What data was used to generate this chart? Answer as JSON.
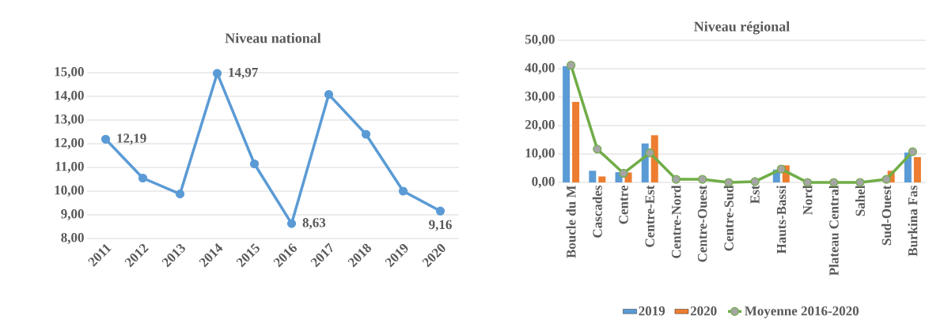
{
  "chart_data": [
    {
      "type": "line",
      "title": "Niveau national",
      "categories": [
        "2011",
        "2012",
        "2013",
        "2014",
        "2015",
        "2016",
        "2017",
        "2018",
        "2019",
        "2020"
      ],
      "series": [
        {
          "color": "#5b9bd5",
          "values": [
            12.19,
            10.55,
            9.88,
            14.97,
            11.15,
            8.63,
            14.08,
            12.4,
            10.0,
            9.16
          ],
          "value_labels": [
            "12,19",
            null,
            null,
            "14,97",
            null,
            "8,63",
            null,
            null,
            null,
            "9,16"
          ]
        }
      ],
      "ylim": [
        8,
        15
      ],
      "yticks": [
        {
          "value": 8,
          "label": "8,00"
        },
        {
          "value": 9,
          "label": "9,00"
        },
        {
          "value": 10,
          "label": "10,00"
        },
        {
          "value": 11,
          "label": "11,00"
        },
        {
          "value": 12,
          "label": "12,00"
        },
        {
          "value": 13,
          "label": "13,00"
        },
        {
          "value": 14,
          "label": "14,00"
        },
        {
          "value": 15,
          "label": "15,00"
        }
      ],
      "grid": "y",
      "marker": "circle",
      "line_style": "solid"
    },
    {
      "type": "bar",
      "title": "Niveau régional",
      "categories": [
        "Boucle du M",
        "Cascades",
        "Centre",
        "Centre-Est",
        "Centre-Nord",
        "Centre-Ouest",
        "Centre-Sud",
        "Est",
        "Hauts-Bassi",
        "Nord",
        "Plateau Central",
        "Sahel",
        "Sud-Ouest",
        "Burkina Fas"
      ],
      "series": [
        {
          "name": "2019",
          "color": "#5b9bd5",
          "values": [
            40.9,
            4.1,
            3.6,
            13.7,
            null,
            null,
            null,
            null,
            4.5,
            null,
            null,
            null,
            null,
            10.5
          ]
        },
        {
          "name": "2020",
          "color": "#ed7d31",
          "values": [
            28.3,
            2.1,
            3.5,
            16.6,
            null,
            null,
            null,
            null,
            6.0,
            null,
            null,
            null,
            4.1,
            8.9
          ]
        },
        {
          "name": "Moyenne 2016-2020",
          "type": "line",
          "color": "#70ad47",
          "values": [
            41.2,
            11.7,
            3.2,
            10.4,
            1.1,
            1.1,
            0,
            0.3,
            4.7,
            0,
            0,
            0,
            1.1,
            10.8
          ]
        }
      ],
      "ylim": [
        0,
        50
      ],
      "yticks": [
        {
          "value": 0,
          "label": "0,00"
        },
        {
          "value": 10,
          "label": "10,00"
        },
        {
          "value": 20,
          "label": "20,00"
        },
        {
          "value": 30,
          "label": "30,00"
        },
        {
          "value": 40,
          "label": "40,00"
        },
        {
          "value": 50,
          "label": "50,00"
        }
      ],
      "grid": "y",
      "marker": "circle",
      "line_style": "solid",
      "legend": "bottom"
    }
  ]
}
